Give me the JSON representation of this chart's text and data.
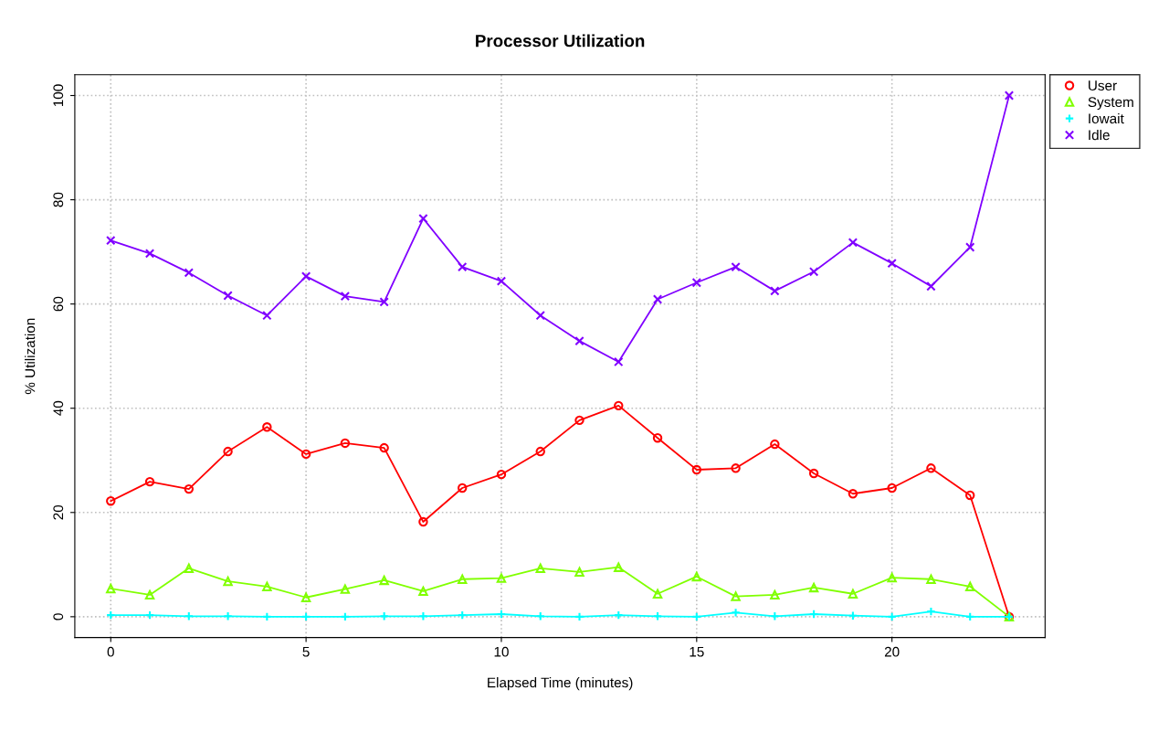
{
  "chart_data": {
    "type": "line",
    "title": "Processor Utilization",
    "xlabel": "Elapsed Time (minutes)",
    "ylabel": "% Utilization",
    "x": [
      0,
      1,
      2,
      3,
      4,
      5,
      6,
      7,
      8,
      9,
      10,
      11,
      12,
      13,
      14,
      15,
      16,
      17,
      18,
      19,
      20,
      21,
      22,
      23
    ],
    "series": [
      {
        "name": "User",
        "color": "#ff0000",
        "marker": "circle",
        "values": [
          22.2,
          25.9,
          24.5,
          31.7,
          36.4,
          31.2,
          33.3,
          32.4,
          18.2,
          24.7,
          27.3,
          31.7,
          37.7,
          40.5,
          34.3,
          28.2,
          28.5,
          33.1,
          27.5,
          23.6,
          24.7,
          28.5,
          23.3,
          0
        ]
      },
      {
        "name": "System",
        "color": "#80ff00",
        "marker": "triangle",
        "values": [
          5.4,
          4.2,
          9.3,
          6.8,
          5.8,
          3.7,
          5.3,
          7.0,
          4.9,
          7.2,
          7.4,
          9.3,
          8.6,
          9.5,
          4.4,
          7.7,
          3.9,
          4.2,
          5.6,
          4.4,
          7.5,
          7.2,
          5.8,
          0
        ]
      },
      {
        "name": "Iowait",
        "color": "#00ffff",
        "marker": "plus",
        "values": [
          0.3,
          0.3,
          0.1,
          0.1,
          0,
          0,
          0,
          0.1,
          0.1,
          0.3,
          0.5,
          0.1,
          0,
          0.3,
          0.1,
          0,
          0.8,
          0.1,
          0.5,
          0.2,
          0,
          1.0,
          0,
          0
        ]
      },
      {
        "name": "Idle",
        "color": "#8000ff",
        "marker": "cross",
        "values": [
          72.2,
          69.7,
          66.0,
          61.6,
          57.8,
          65.3,
          61.5,
          60.4,
          76.4,
          67.1,
          64.4,
          57.8,
          52.9,
          48.9,
          60.9,
          64.1,
          67.1,
          62.5,
          66.2,
          71.8,
          67.8,
          63.4,
          70.9,
          100
        ]
      }
    ],
    "xlim": [
      -0.92,
      23.92
    ],
    "ylim": [
      -4,
      104
    ],
    "xticks": [
      0,
      5,
      10,
      15,
      20
    ],
    "yticks": [
      0,
      20,
      40,
      60,
      80,
      100
    ],
    "grid": true,
    "legend": "top right",
    "line_style": "solid"
  }
}
